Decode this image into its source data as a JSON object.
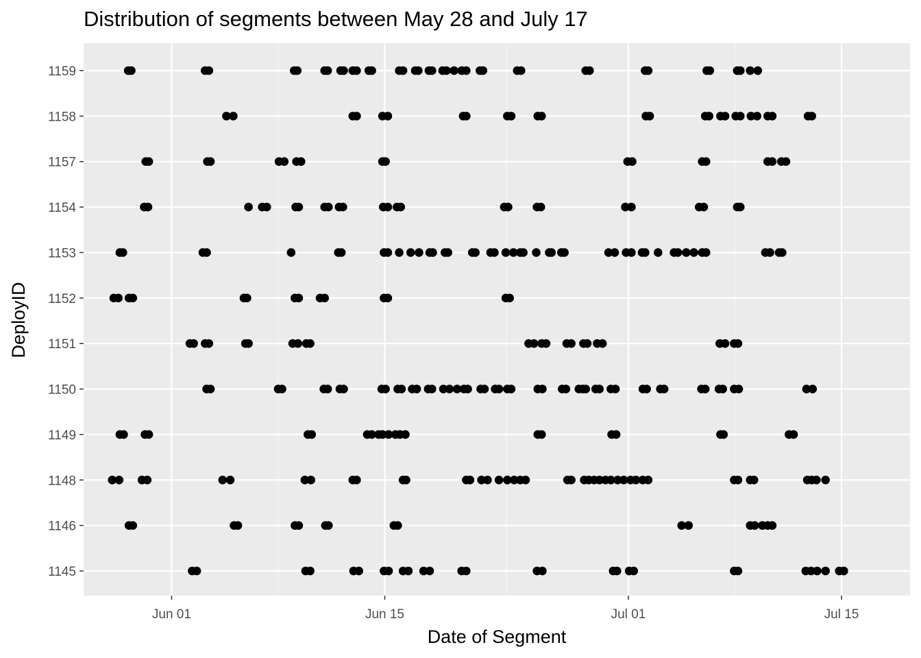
{
  "chart_data": {
    "type": "scatter",
    "title": "Distribution of segments between May 28 and July 17",
    "xlabel": "Date of Segment",
    "ylabel": "DeployID",
    "x_ticks": [
      "Jun 01",
      "Jun 15",
      "Jul 01",
      "Jul 15"
    ],
    "x_tick_days": [
      4,
      18,
      34,
      48
    ],
    "x_minor_days": [
      11,
      26,
      41
    ],
    "xlim_days": [
      -1.78,
      52.5
    ],
    "categories": [
      "1145",
      "1146",
      "1148",
      "1149",
      "1150",
      "1151",
      "1152",
      "1153",
      "1154",
      "1157",
      "1158",
      "1159"
    ],
    "x_encoding": "x values are day numbers where 0 = May 28",
    "points": {
      "1159": [
        1.15,
        1.35,
        6.2,
        6.45,
        12.05,
        12.25,
        14.05,
        14.25,
        15.1,
        15.3,
        15.9,
        16.15,
        16.95,
        17.15,
        18.95,
        19.2,
        20.0,
        20.2,
        20.9,
        21.1,
        21.8,
        22.05,
        22.55,
        23.05,
        23.35,
        24.25,
        24.45,
        26.7,
        26.95,
        31.2,
        31.45,
        35.1,
        35.3,
        39.15,
        39.35,
        41.15,
        41.35,
        42.0,
        42.5
      ]
    },
    "series_points": [
      {
        "id": "1159",
        "x": [
          1.15,
          1.35,
          6.2,
          6.45,
          12.05,
          12.25,
          14.05,
          14.25,
          15.1,
          15.3,
          15.9,
          16.15,
          16.95,
          17.15,
          18.95,
          19.2,
          20.0,
          20.2,
          20.9,
          21.1,
          21.8,
          22.05,
          22.55,
          23.05,
          23.35,
          24.25,
          24.45,
          26.7,
          26.95,
          31.2,
          31.45,
          35.1,
          35.3,
          39.15,
          39.35,
          41.15,
          41.35,
          42.0,
          42.5
        ]
      },
      {
        "id": "1158",
        "x": [
          7.6,
          8.05,
          15.9,
          16.15,
          17.85,
          18.2,
          23.15,
          23.35,
          26.05,
          26.3,
          28.05,
          28.3,
          35.15,
          35.4,
          39.05,
          39.3,
          40.05,
          40.35,
          41.05,
          41.35,
          42.05,
          42.45,
          43.15,
          43.45,
          45.8,
          46.05
        ]
      },
      {
        "id": "1157",
        "x": [
          2.3,
          2.5,
          6.35,
          6.55,
          11.05,
          11.4,
          12.2,
          12.5,
          17.85,
          18.05,
          33.95,
          34.25,
          38.85,
          39.1,
          43.15,
          43.45,
          44.05,
          44.35
        ]
      },
      {
        "id": "1154",
        "x": [
          2.2,
          2.45,
          9.05,
          9.95,
          10.25,
          12.15,
          12.35,
          14.05,
          14.3,
          15.0,
          15.25,
          17.9,
          18.2,
          18.8,
          19.05,
          25.85,
          26.1,
          28.0,
          28.25,
          33.8,
          34.2,
          38.65,
          38.95,
          41.15,
          41.35
        ]
      },
      {
        "id": "1153",
        "x": [
          0.6,
          0.8,
          6.05,
          6.3,
          11.85,
          14.95,
          15.15,
          17.95,
          18.2,
          18.95,
          19.7,
          20.25,
          20.95,
          21.15,
          21.95,
          22.15,
          23.75,
          23.95,
          24.95,
          25.2,
          25.95,
          26.45,
          26.9,
          27.1,
          27.95,
          28.8,
          28.95,
          29.6,
          29.8,
          32.7,
          33.1,
          33.85,
          34.2,
          34.9,
          35.1,
          35.95,
          37.0,
          37.25,
          37.8,
          38.3,
          38.85,
          39.1,
          43.0,
          43.3,
          43.9,
          44.1
        ]
      },
      {
        "id": "1152",
        "x": [
          0.2,
          0.5,
          1.2,
          1.45,
          8.75,
          8.95,
          12.1,
          12.35,
          13.75,
          14.05,
          17.95,
          18.2,
          25.95,
          26.2
        ]
      },
      {
        "id": "1151",
        "x": [
          5.2,
          5.45,
          6.2,
          6.45,
          8.85,
          9.05,
          11.95,
          12.3,
          12.85,
          13.1,
          27.45,
          27.8,
          28.3,
          28.6,
          29.95,
          30.25,
          31.05,
          31.3,
          31.95,
          32.3,
          40.0,
          40.35,
          40.95,
          41.2
        ]
      },
      {
        "id": "1150",
        "x": [
          6.3,
          6.55,
          11.0,
          11.25,
          14.0,
          14.25,
          15.05,
          15.3,
          17.8,
          18.05,
          18.85,
          19.1,
          19.8,
          20.1,
          20.85,
          21.1,
          21.85,
          22.25,
          22.75,
          23.2,
          23.45,
          24.3,
          24.55,
          25.25,
          25.5,
          26.05,
          26.3,
          28.05,
          28.35,
          29.65,
          29.9,
          30.75,
          31.0,
          31.2,
          31.85,
          32.1,
          32.85,
          33.15,
          34.95,
          35.2,
          36.1,
          36.35,
          38.8,
          39.05,
          39.95,
          40.2,
          40.95,
          41.25,
          45.7,
          46.1
        ]
      },
      {
        "id": "1149",
        "x": [
          0.6,
          0.85,
          2.25,
          2.5,
          12.95,
          13.2,
          16.85,
          17.15,
          17.6,
          17.85,
          18.25,
          18.7,
          19.0,
          19.35,
          28.05,
          28.3,
          32.9,
          33.2,
          40.05,
          40.25,
          44.55,
          44.85
        ]
      },
      {
        "id": "1148",
        "x": [
          0.1,
          0.55,
          2.05,
          2.4,
          7.35,
          7.85,
          12.75,
          13.15,
          15.9,
          16.15,
          19.2,
          19.4,
          23.35,
          23.6,
          24.35,
          24.75,
          25.5,
          26.05,
          26.5,
          26.9,
          27.25,
          30.0,
          30.25,
          31.1,
          31.4,
          31.75,
          32.1,
          32.5,
          32.85,
          33.3,
          33.7,
          34.15,
          34.5,
          34.95,
          35.3,
          40.95,
          41.2,
          42.0,
          42.25,
          45.75,
          46.05,
          46.35,
          46.95
        ]
      },
      {
        "id": "1146",
        "x": [
          1.2,
          1.45,
          8.1,
          8.35,
          12.1,
          12.35,
          14.1,
          14.3,
          18.6,
          18.85,
          37.5,
          37.95,
          42.0,
          42.3,
          42.8,
          43.15,
          43.45
        ]
      },
      {
        "id": "1145",
        "x": [
          5.35,
          5.65,
          12.8,
          13.1,
          15.95,
          16.3,
          17.95,
          18.25,
          19.2,
          19.55,
          20.55,
          20.95,
          23.05,
          23.35,
          28.0,
          28.35,
          33.0,
          33.25,
          34.05,
          34.35,
          40.95,
          41.2,
          45.65,
          46.0,
          46.4,
          46.95,
          47.85,
          48.15
        ]
      }
    ]
  }
}
